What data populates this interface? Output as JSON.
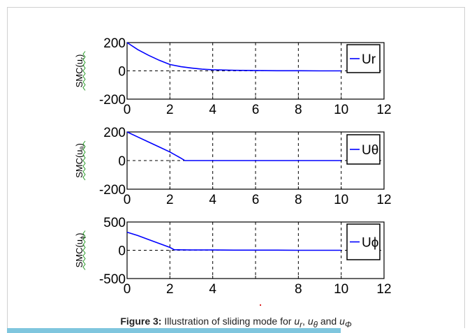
{
  "chart_data": [
    {
      "type": "line",
      "ylabel": "SMC(u_r)",
      "ylabel_sub": "r",
      "xlim": [
        0,
        12
      ],
      "ylim": [
        -200,
        200
      ],
      "xticks": [
        "0",
        "2",
        "4",
        "6",
        "8",
        "10",
        "12"
      ],
      "yticks": [
        "200",
        "0",
        "-200"
      ],
      "grid": true,
      "legend_position": "top-right",
      "series": [
        {
          "name": "Ur",
          "color": "#0000ff",
          "x": [
            0,
            0.5,
            1,
            1.5,
            2,
            2.5,
            3,
            3.5,
            4,
            5,
            6,
            7,
            8,
            9,
            10
          ],
          "y": [
            200,
            150,
            110,
            75,
            45,
            30,
            20,
            12,
            8,
            4,
            2,
            1,
            1,
            0,
            0
          ]
        }
      ]
    },
    {
      "type": "line",
      "ylabel": "SMC(u_θ)",
      "ylabel_sub": "θ",
      "xlim": [
        0,
        12
      ],
      "ylim": [
        -200,
        200
      ],
      "xticks": [
        "0",
        "2",
        "4",
        "6",
        "8",
        "10",
        "12"
      ],
      "yticks": [
        "200",
        "0",
        "-200"
      ],
      "grid": true,
      "legend_position": "top-right",
      "series": [
        {
          "name": "Uθ",
          "color": "#0000ff",
          "x": [
            0,
            0.5,
            1,
            1.5,
            2,
            2.5,
            2.7,
            3,
            4,
            5,
            6,
            7,
            8,
            9,
            10
          ],
          "y": [
            200,
            165,
            130,
            95,
            60,
            18,
            0,
            0,
            0,
            0,
            0,
            0,
            0,
            0,
            0
          ]
        }
      ]
    },
    {
      "type": "line",
      "ylabel": "SMC(u_ϕ)",
      "ylabel_sub": "ϕ",
      "xlim": [
        0,
        12
      ],
      "ylim": [
        -500,
        500
      ],
      "xticks": [
        "0",
        "2",
        "4",
        "",
        "8",
        "10",
        "12"
      ],
      "yticks": [
        "500",
        "0",
        "-500"
      ],
      "grid": true,
      "legend_position": "top-right",
      "series": [
        {
          "name": "Uϕ",
          "color": "#0000ff",
          "x": [
            0,
            0.5,
            1,
            1.5,
            2,
            2.2,
            3,
            4,
            5,
            6,
            7,
            8,
            9,
            10
          ],
          "y": [
            320,
            260,
            190,
            120,
            50,
            10,
            5,
            5,
            3,
            3,
            2,
            0,
            0,
            0
          ]
        }
      ]
    }
  ],
  "caption": {
    "prefix": "Figure 3:",
    "text": "Illustration of sliding mode for",
    "var1": "u",
    "var1_sub": "r",
    "sep": ",",
    "var2": "u",
    "var2_sub": "θ",
    "and": "and",
    "var3": "u",
    "var3_sub": "Φ"
  }
}
